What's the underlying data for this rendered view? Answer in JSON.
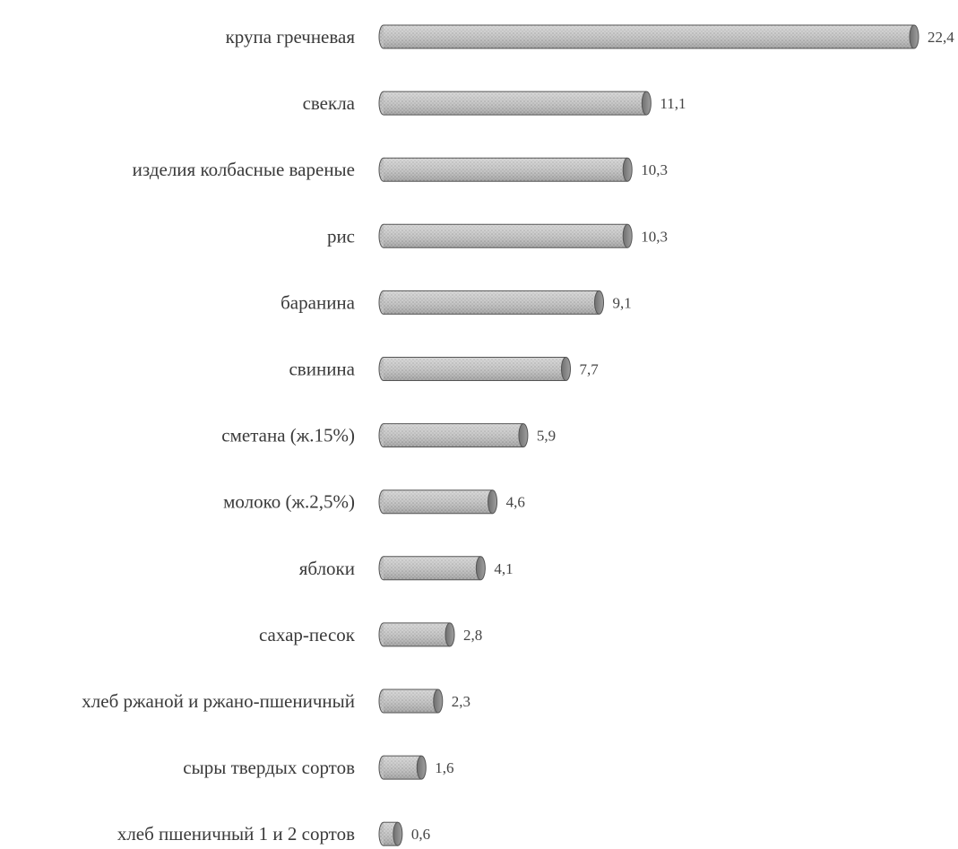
{
  "chart_data": {
    "type": "bar",
    "orientation": "horizontal",
    "categories": [
      "крупа гречневая",
      "свекла",
      "изделия колбасные  вареные",
      "рис",
      "баранина",
      "свинина",
      "сметана (ж.15%)",
      "молоко (ж.2,5%)",
      "яблоки",
      "сахар-песок",
      "хлеб ржаной и ржано-пшеничный",
      "сыры твердых сортов",
      "хлеб пшеничный 1 и 2 сортов"
    ],
    "values": [
      22.4,
      11.1,
      10.3,
      10.3,
      9.1,
      7.7,
      5.9,
      4.6,
      4.1,
      2.8,
      2.3,
      1.6,
      0.6
    ],
    "value_labels": [
      "22,4",
      "11,1",
      "10,3",
      "10,3",
      "9,1",
      "7,7",
      "5,9",
      "4,6",
      "4,1",
      "2,8",
      "2,3",
      "1,6",
      "0,6"
    ],
    "xlim": [
      0,
      22.4
    ],
    "grid": false,
    "legend": "none",
    "colors": {
      "bar_fill": "#bdbdbd",
      "bar_stroke": "#555555",
      "cap_fill": "#8c8c8c",
      "text": "#3a3a3a"
    }
  }
}
